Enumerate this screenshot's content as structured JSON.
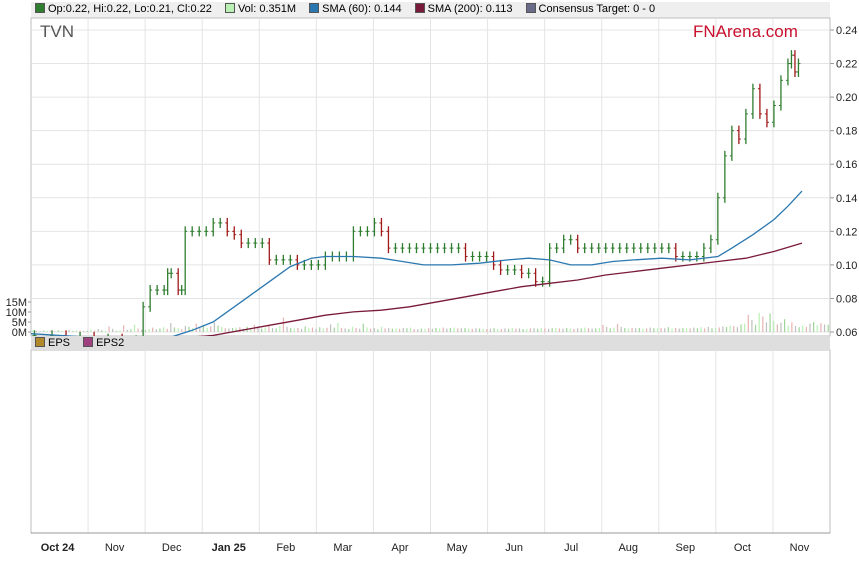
{
  "legend": {
    "ohlc": {
      "text": "Op:0.22, Hi:0.22, Lo:0.21, Cl:0.22",
      "color": "#2f7d2f"
    },
    "vol": {
      "text": "Vol: 0.351M",
      "color": "#b9f0b3"
    },
    "sma60": {
      "text": "SMA (60): 0.144",
      "color": "#2a78b0"
    },
    "sma200": {
      "text": "SMA (200): 0.113",
      "color": "#7a1a3a"
    },
    "consensus": {
      "text": "Consensus Target: 0 - 0",
      "color": "#6a6a8a"
    }
  },
  "ticker": "TVN",
  "brand": "FNArena.com",
  "eps_legend": {
    "eps": {
      "text": "EPS",
      "color": "#b08a2a"
    },
    "eps2": {
      "text": "EPS2",
      "color": "#a04080"
    }
  },
  "chart_data": {
    "type": "line",
    "price_axis": {
      "ticks": [
        0.06,
        0.08,
        0.1,
        0.12,
        0.14,
        0.16,
        0.18,
        0.2,
        0.22,
        0.24
      ],
      "labels": [
        "0.06",
        "0.08",
        "0.10",
        "0.12",
        "0.14",
        "0.16",
        "0.18",
        "0.20",
        "0.22",
        "0.24"
      ],
      "ylim": [
        0.06,
        0.24
      ]
    },
    "volume_axis": {
      "ticks": [
        0,
        5,
        10,
        15
      ],
      "labels": [
        "0M",
        "5M",
        "10M",
        "15M"
      ],
      "unit": "M"
    },
    "x_axis": {
      "labels": [
        "Oct 24",
        "Nov",
        "Dec",
        "Jan 25",
        "Feb",
        "Mar",
        "Apr",
        "May",
        "Jun",
        "Jul",
        "Aug",
        "Sep",
        "Oct",
        "Nov"
      ],
      "bold": [
        true,
        false,
        false,
        true,
        false,
        false,
        false,
        false,
        false,
        false,
        false,
        false,
        false,
        false
      ],
      "xlim": [
        0,
        57
      ]
    },
    "price": [
      [
        0.25,
        0.058
      ],
      [
        1.5,
        0.058
      ],
      [
        2.5,
        0.057
      ],
      [
        3.5,
        0.057
      ],
      [
        4.5,
        0.056
      ],
      [
        5.5,
        0.056
      ],
      [
        6.5,
        0.055
      ],
      [
        7.5,
        0.055
      ],
      [
        8.0,
        0.075
      ],
      [
        8.5,
        0.085
      ],
      [
        9.0,
        0.085
      ],
      [
        9.5,
        0.085
      ],
      [
        9.75,
        0.095
      ],
      [
        10.0,
        0.095
      ],
      [
        10.5,
        0.085
      ],
      [
        10.75,
        0.085
      ],
      [
        11.0,
        0.12
      ],
      [
        11.5,
        0.12
      ],
      [
        12.0,
        0.12
      ],
      [
        12.5,
        0.12
      ],
      [
        13.0,
        0.125
      ],
      [
        13.5,
        0.125
      ],
      [
        14.0,
        0.12
      ],
      [
        14.5,
        0.118
      ],
      [
        15.0,
        0.113
      ],
      [
        15.5,
        0.113
      ],
      [
        16.0,
        0.113
      ],
      [
        16.5,
        0.113
      ],
      [
        17.0,
        0.103
      ],
      [
        17.5,
        0.103
      ],
      [
        18.0,
        0.103
      ],
      [
        18.5,
        0.103
      ],
      [
        19.0,
        0.1
      ],
      [
        19.5,
        0.1
      ],
      [
        20.0,
        0.1
      ],
      [
        20.5,
        0.1
      ],
      [
        21.0,
        0.105
      ],
      [
        21.5,
        0.105
      ],
      [
        22.0,
        0.105
      ],
      [
        22.5,
        0.105
      ],
      [
        23.0,
        0.12
      ],
      [
        23.5,
        0.12
      ],
      [
        24.0,
        0.12
      ],
      [
        24.5,
        0.125
      ],
      [
        25.0,
        0.12
      ],
      [
        25.5,
        0.11
      ],
      [
        26.0,
        0.11
      ],
      [
        26.5,
        0.11
      ],
      [
        27.0,
        0.11
      ],
      [
        27.5,
        0.11
      ],
      [
        28.0,
        0.11
      ],
      [
        28.5,
        0.11
      ],
      [
        29.0,
        0.11
      ],
      [
        29.5,
        0.11
      ],
      [
        30.0,
        0.11
      ],
      [
        30.5,
        0.11
      ],
      [
        31.0,
        0.105
      ],
      [
        31.5,
        0.105
      ],
      [
        32.0,
        0.105
      ],
      [
        32.5,
        0.105
      ],
      [
        33.0,
        0.1
      ],
      [
        33.5,
        0.097
      ],
      [
        34.0,
        0.097
      ],
      [
        34.5,
        0.097
      ],
      [
        35.0,
        0.095
      ],
      [
        35.5,
        0.095
      ],
      [
        36.0,
        0.09
      ],
      [
        36.5,
        0.09
      ],
      [
        37.0,
        0.11
      ],
      [
        37.5,
        0.11
      ],
      [
        38.0,
        0.115
      ],
      [
        38.5,
        0.115
      ],
      [
        39.0,
        0.11
      ],
      [
        39.5,
        0.11
      ],
      [
        40.0,
        0.11
      ],
      [
        40.5,
        0.11
      ],
      [
        41.0,
        0.11
      ],
      [
        41.5,
        0.11
      ],
      [
        42.0,
        0.11
      ],
      [
        42.5,
        0.11
      ],
      [
        43.0,
        0.11
      ],
      [
        43.5,
        0.11
      ],
      [
        44.0,
        0.11
      ],
      [
        44.5,
        0.11
      ],
      [
        45.0,
        0.11
      ],
      [
        45.5,
        0.11
      ],
      [
        46.0,
        0.105
      ],
      [
        46.5,
        0.105
      ],
      [
        47.0,
        0.105
      ],
      [
        47.5,
        0.105
      ],
      [
        48.0,
        0.11
      ],
      [
        48.5,
        0.115
      ],
      [
        49.0,
        0.14
      ],
      [
        49.5,
        0.165
      ],
      [
        50.0,
        0.18
      ],
      [
        50.5,
        0.175
      ],
      [
        51.0,
        0.19
      ],
      [
        51.5,
        0.205
      ],
      [
        52.0,
        0.19
      ],
      [
        52.5,
        0.185
      ],
      [
        53.0,
        0.195
      ],
      [
        53.5,
        0.21
      ],
      [
        54.0,
        0.22
      ],
      [
        54.25,
        0.225
      ],
      [
        54.5,
        0.215
      ],
      [
        54.75,
        0.22
      ]
    ],
    "sma60": [
      [
        0.0,
        0.059
      ],
      [
        2.0,
        0.058
      ],
      [
        4.0,
        0.057
      ],
      [
        6.0,
        0.056
      ],
      [
        8.0,
        0.056
      ],
      [
        10.0,
        0.057
      ],
      [
        11.5,
        0.061
      ],
      [
        13.0,
        0.066
      ],
      [
        15.0,
        0.078
      ],
      [
        17.0,
        0.09
      ],
      [
        18.5,
        0.099
      ],
      [
        20.0,
        0.104
      ],
      [
        21.0,
        0.105
      ],
      [
        22.0,
        0.105
      ],
      [
        23.0,
        0.105
      ],
      [
        25.0,
        0.104
      ],
      [
        26.5,
        0.102
      ],
      [
        28.0,
        0.1
      ],
      [
        30.0,
        0.1
      ],
      [
        32.0,
        0.101
      ],
      [
        34.0,
        0.103
      ],
      [
        35.5,
        0.104
      ],
      [
        37.0,
        0.103
      ],
      [
        38.5,
        0.1
      ],
      [
        40.0,
        0.1
      ],
      [
        41.5,
        0.102
      ],
      [
        43.0,
        0.103
      ],
      [
        45.0,
        0.104
      ],
      [
        47.0,
        0.103
      ],
      [
        49.0,
        0.105
      ],
      [
        50.0,
        0.11
      ],
      [
        51.5,
        0.118
      ],
      [
        53.0,
        0.127
      ],
      [
        54.0,
        0.135
      ],
      [
        55.0,
        0.144
      ]
    ],
    "sma200": [
      [
        8.0,
        0.056
      ],
      [
        10.0,
        0.056
      ],
      [
        11.5,
        0.057
      ],
      [
        13.0,
        0.058
      ],
      [
        15.0,
        0.061
      ],
      [
        17.0,
        0.064
      ],
      [
        19.0,
        0.067
      ],
      [
        21.0,
        0.07
      ],
      [
        23.0,
        0.072
      ],
      [
        25.0,
        0.073
      ],
      [
        27.0,
        0.075
      ],
      [
        29.0,
        0.078
      ],
      [
        31.0,
        0.081
      ],
      [
        33.0,
        0.084
      ],
      [
        35.0,
        0.087
      ],
      [
        37.0,
        0.089
      ],
      [
        39.0,
        0.091
      ],
      [
        41.0,
        0.094
      ],
      [
        43.0,
        0.096
      ],
      [
        45.0,
        0.098
      ],
      [
        47.0,
        0.1
      ],
      [
        49.0,
        0.102
      ],
      [
        51.0,
        0.104
      ],
      [
        53.0,
        0.108
      ],
      [
        55.0,
        0.113
      ]
    ],
    "volume": [
      0.9,
      0.6,
      0.4,
      0.8,
      0.5,
      0.7,
      0.3,
      0.9,
      0.6,
      0.4,
      1.1,
      0.5,
      0.8,
      0.7,
      0.5,
      0.6,
      1.2,
      0.8,
      1.5,
      0.9,
      0.6,
      2.8,
      1.6,
      0.7,
      0.9,
      3.4,
      1.1,
      1.3,
      3.6,
      1.8,
      1.2,
      1.0,
      1.5,
      2.2,
      1.4,
      1.8,
      2.4,
      1.6,
      4.5,
      2.3,
      2.0,
      1.4,
      3.0,
      2.6,
      2.0,
      4.2,
      2.4,
      3.6,
      2.1,
      2.8,
      4.8,
      3.2,
      2.6,
      1.9,
      1.8,
      2.0,
      2.2,
      2.4,
      1.6,
      2.6,
      2.0,
      3.6,
      2.8,
      1.7,
      2.2,
      3.2,
      2.0,
      1.8,
      3.0,
      7.2,
      2.6,
      2.1,
      1.8,
      2.0,
      1.6,
      2.8,
      1.9,
      2.2,
      1.6,
      2.4,
      1.8,
      2.1,
      3.8,
      2.2,
      4.5,
      2.0,
      1.8,
      1.5,
      2.6,
      2.0,
      1.7,
      4.2,
      2.3,
      1.6,
      2.0,
      1.4,
      2.6,
      1.8,
      2.0,
      1.7,
      1.8,
      1.6,
      2.0,
      1.9,
      2.2,
      1.5,
      1.4,
      1.7,
      1.6,
      1.9,
      1.6,
      2.0,
      1.8,
      2.2,
      1.7,
      2.0,
      2.2,
      1.8,
      1.9,
      2.0,
      1.7,
      1.6,
      1.9,
      1.8,
      1.6,
      1.5,
      1.7,
      1.9,
      1.6,
      1.5,
      1.8,
      1.6,
      2.0,
      1.7,
      1.8,
      1.5,
      1.6,
      1.8,
      1.9,
      1.7,
      2.0,
      1.8,
      1.6,
      1.9,
      2.1,
      1.8,
      1.7,
      2.0,
      1.8,
      1.6,
      1.9,
      1.8,
      2.2,
      1.9,
      1.7,
      1.8,
      2.0,
      3.5,
      2.5,
      1.8,
      2.2,
      4.0,
      2.6,
      2.0,
      1.8,
      2.1,
      1.9,
      2.0,
      1.7,
      1.8,
      2.2,
      1.9,
      1.8,
      2.0,
      1.9,
      2.4,
      1.8,
      2.0,
      1.7,
      1.9,
      2.0,
      1.8,
      2.2,
      1.9,
      2.4,
      1.8,
      2.6,
      1.9,
      2.0,
      2.3,
      2.8,
      2.5,
      3.2,
      3.0,
      2.4,
      3.8,
      4.2,
      8.6,
      6.0,
      3.6,
      9.6,
      7.8,
      4.8,
      9.2,
      5.6,
      3.8,
      4.6,
      6.4,
      3.2,
      4.8,
      3.0,
      2.4,
      3.2,
      2.6,
      4.2,
      5.0,
      3.4,
      4.4,
      3.8,
      3.6
    ]
  }
}
